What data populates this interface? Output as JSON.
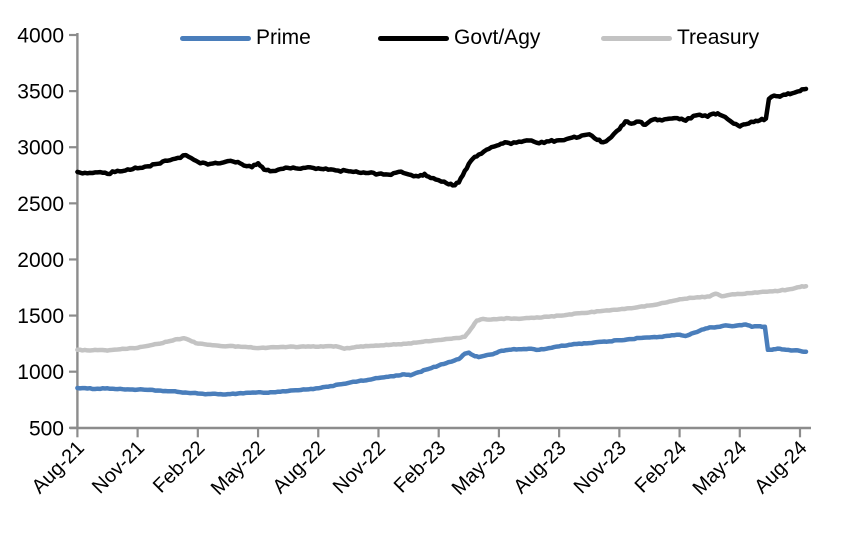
{
  "chart_data": {
    "type": "line",
    "title": "",
    "x_axis": {
      "tick_labels": [
        "Aug-21",
        "Nov-21",
        "Feb-22",
        "May-22",
        "Aug-22",
        "Nov-22",
        "Feb-23",
        "May-23",
        "Aug-23",
        "Nov-23",
        "Feb-24",
        "May-24",
        "Aug-24"
      ],
      "tick_positions_months": [
        0,
        3,
        6,
        9,
        12,
        15,
        18,
        21,
        24,
        27,
        30,
        33,
        36
      ],
      "data_range_months": [
        0,
        36.3
      ],
      "label_rotation_deg": -45
    },
    "y_axis": {
      "ticks": [
        500,
        1000,
        1500,
        2000,
        2500,
        3000,
        3500,
        4000
      ],
      "range": [
        500,
        4000
      ],
      "gridlines": false
    },
    "legend": {
      "position": "top",
      "entries": [
        {
          "label": "Prime",
          "color": "#4A7EBB"
        },
        {
          "label": "Govt/Agy",
          "color": "#000000"
        },
        {
          "label": "Treasury",
          "color": "#C3C3C3"
        }
      ]
    },
    "series": [
      {
        "name": "Prime",
        "color": "#4A7EBB",
        "stroke_width": 4.5,
        "roughness": 3.5,
        "points": [
          [
            0,
            855
          ],
          [
            0.5,
            850
          ],
          [
            1,
            848
          ],
          [
            1.5,
            852
          ],
          [
            2,
            845
          ],
          [
            2.5,
            842
          ],
          [
            3,
            840
          ],
          [
            3.5,
            838
          ],
          [
            4,
            832
          ],
          [
            4.5,
            826
          ],
          [
            5,
            820
          ],
          [
            5.5,
            812
          ],
          [
            6,
            806
          ],
          [
            6.5,
            801
          ],
          [
            7,
            799
          ],
          [
            7.5,
            800
          ],
          [
            8,
            806
          ],
          [
            8.5,
            812
          ],
          [
            9,
            816
          ],
          [
            9.5,
            812
          ],
          [
            10,
            822
          ],
          [
            10.5,
            828
          ],
          [
            11,
            835
          ],
          [
            11.5,
            842
          ],
          [
            12,
            852
          ],
          [
            12.5,
            866
          ],
          [
            13,
            886
          ],
          [
            13.5,
            900
          ],
          [
            14,
            915
          ],
          [
            14.5,
            928
          ],
          [
            15,
            944
          ],
          [
            15.5,
            955
          ],
          [
            16,
            966
          ],
          [
            16.3,
            976
          ],
          [
            16.6,
            968
          ],
          [
            17,
            995
          ],
          [
            17.5,
            1025
          ],
          [
            18,
            1055
          ],
          [
            18.5,
            1085
          ],
          [
            19,
            1112
          ],
          [
            19.3,
            1160
          ],
          [
            19.5,
            1170
          ],
          [
            19.8,
            1138
          ],
          [
            20,
            1130
          ],
          [
            20.4,
            1148
          ],
          [
            20.7,
            1155
          ],
          [
            21,
            1180
          ],
          [
            21.5,
            1195
          ],
          [
            22,
            1200
          ],
          [
            22.5,
            1205
          ],
          [
            23,
            1195
          ],
          [
            23.5,
            1210
          ],
          [
            24,
            1225
          ],
          [
            24.5,
            1240
          ],
          [
            25,
            1250
          ],
          [
            25.5,
            1255
          ],
          [
            26,
            1265
          ],
          [
            26.5,
            1270
          ],
          [
            27,
            1280
          ],
          [
            27.5,
            1290
          ],
          [
            28,
            1300
          ],
          [
            28.5,
            1305
          ],
          [
            29,
            1310
          ],
          [
            29.5,
            1320
          ],
          [
            30,
            1330
          ],
          [
            30.3,
            1318
          ],
          [
            30.6,
            1340
          ],
          [
            31,
            1365
          ],
          [
            31.3,
            1385
          ],
          [
            31.6,
            1395
          ],
          [
            32,
            1400
          ],
          [
            32.3,
            1412
          ],
          [
            32.6,
            1405
          ],
          [
            33,
            1415
          ],
          [
            33.3,
            1420
          ],
          [
            33.6,
            1400
          ],
          [
            34,
            1405
          ],
          [
            34.25,
            1400
          ],
          [
            34.4,
            1195
          ],
          [
            34.7,
            1200
          ],
          [
            35,
            1205
          ],
          [
            35.3,
            1196
          ],
          [
            35.7,
            1190
          ],
          [
            36,
            1185
          ],
          [
            36.3,
            1178
          ]
        ]
      },
      {
        "name": "Govt/Agy",
        "color": "#000000",
        "stroke_width": 4.5,
        "roughness": 9,
        "points": [
          [
            0,
            2780
          ],
          [
            0.5,
            2768
          ],
          [
            1,
            2776
          ],
          [
            1.5,
            2762
          ],
          [
            2,
            2790
          ],
          [
            2.5,
            2802
          ],
          [
            3,
            2812
          ],
          [
            3.5,
            2830
          ],
          [
            4,
            2852
          ],
          [
            4.5,
            2880
          ],
          [
            5,
            2905
          ],
          [
            5.4,
            2930
          ],
          [
            5.8,
            2888
          ],
          [
            6,
            2870
          ],
          [
            6.5,
            2846
          ],
          [
            7,
            2856
          ],
          [
            7.5,
            2876
          ],
          [
            8,
            2868
          ],
          [
            8.3,
            2836
          ],
          [
            8.7,
            2822
          ],
          [
            9,
            2858
          ],
          [
            9.3,
            2800
          ],
          [
            9.6,
            2786
          ],
          [
            10,
            2800
          ],
          [
            10.5,
            2816
          ],
          [
            11,
            2810
          ],
          [
            11.5,
            2822
          ],
          [
            12,
            2812
          ],
          [
            12.5,
            2800
          ],
          [
            13,
            2792
          ],
          [
            13.5,
            2786
          ],
          [
            14,
            2776
          ],
          [
            14.5,
            2770
          ],
          [
            15,
            2762
          ],
          [
            15.5,
            2756
          ],
          [
            16,
            2780
          ],
          [
            16.5,
            2758
          ],
          [
            17,
            2740
          ],
          [
            17.3,
            2762
          ],
          [
            17.6,
            2726
          ],
          [
            18,
            2706
          ],
          [
            18.4,
            2678
          ],
          [
            18.7,
            2660
          ],
          [
            19,
            2686
          ],
          [
            19.2,
            2750
          ],
          [
            19.5,
            2852
          ],
          [
            19.8,
            2915
          ],
          [
            20,
            2935
          ],
          [
            20.5,
            2985
          ],
          [
            21,
            3020
          ],
          [
            21.3,
            3045
          ],
          [
            21.6,
            3030
          ],
          [
            22,
            3050
          ],
          [
            22.5,
            3060
          ],
          [
            23,
            3035
          ],
          [
            23.5,
            3052
          ],
          [
            24,
            3062
          ],
          [
            24.5,
            3080
          ],
          [
            25,
            3090
          ],
          [
            25.5,
            3115
          ],
          [
            25.9,
            3065
          ],
          [
            26.2,
            3045
          ],
          [
            26.6,
            3090
          ],
          [
            27,
            3160
          ],
          [
            27.3,
            3230
          ],
          [
            27.6,
            3210
          ],
          [
            28,
            3228
          ],
          [
            28.3,
            3200
          ],
          [
            28.7,
            3248
          ],
          [
            29,
            3245
          ],
          [
            29.5,
            3255
          ],
          [
            30,
            3250
          ],
          [
            30.3,
            3236
          ],
          [
            30.7,
            3280
          ],
          [
            31,
            3290
          ],
          [
            31.4,
            3272
          ],
          [
            31.7,
            3300
          ],
          [
            32,
            3290
          ],
          [
            32.4,
            3250
          ],
          [
            32.7,
            3210
          ],
          [
            33,
            3185
          ],
          [
            33.3,
            3205
          ],
          [
            33.7,
            3225
          ],
          [
            34,
            3240
          ],
          [
            34.3,
            3255
          ],
          [
            34.45,
            3430
          ],
          [
            34.7,
            3460
          ],
          [
            35,
            3450
          ],
          [
            35.3,
            3468
          ],
          [
            35.6,
            3480
          ],
          [
            36,
            3500
          ],
          [
            36.3,
            3520
          ]
        ]
      },
      {
        "name": "Treasury",
        "color": "#C3C3C3",
        "stroke_width": 4.5,
        "roughness": 3.5,
        "points": [
          [
            0,
            1195
          ],
          [
            0.5,
            1190
          ],
          [
            1,
            1192
          ],
          [
            1.5,
            1188
          ],
          [
            2,
            1198
          ],
          [
            2.5,
            1205
          ],
          [
            3,
            1212
          ],
          [
            3.5,
            1230
          ],
          [
            4,
            1248
          ],
          [
            4.5,
            1268
          ],
          [
            5,
            1290
          ],
          [
            5.3,
            1298
          ],
          [
            5.7,
            1270
          ],
          [
            6,
            1250
          ],
          [
            6.5,
            1240
          ],
          [
            7,
            1232
          ],
          [
            7.5,
            1228
          ],
          [
            8,
            1225
          ],
          [
            8.5,
            1218
          ],
          [
            9,
            1210
          ],
          [
            9.5,
            1215
          ],
          [
            10,
            1218
          ],
          [
            10.5,
            1222
          ],
          [
            11,
            1220
          ],
          [
            11.5,
            1225
          ],
          [
            12,
            1222
          ],
          [
            12.5,
            1228
          ],
          [
            13,
            1222
          ],
          [
            13.3,
            1205
          ],
          [
            13.7,
            1215
          ],
          [
            14,
            1222
          ],
          [
            14.5,
            1228
          ],
          [
            15,
            1232
          ],
          [
            15.5,
            1238
          ],
          [
            16,
            1245
          ],
          [
            16.5,
            1252
          ],
          [
            17,
            1262
          ],
          [
            17.5,
            1272
          ],
          [
            18,
            1282
          ],
          [
            18.5,
            1292
          ],
          [
            19,
            1300
          ],
          [
            19.3,
            1312
          ],
          [
            19.6,
            1380
          ],
          [
            19.9,
            1455
          ],
          [
            20.2,
            1470
          ],
          [
            20.5,
            1464
          ],
          [
            21,
            1470
          ],
          [
            21.5,
            1476
          ],
          [
            22,
            1470
          ],
          [
            22.5,
            1478
          ],
          [
            23,
            1482
          ],
          [
            23.5,
            1490
          ],
          [
            24,
            1500
          ],
          [
            24.5,
            1510
          ],
          [
            25,
            1520
          ],
          [
            25.5,
            1528
          ],
          [
            26,
            1538
          ],
          [
            26.5,
            1545
          ],
          [
            27,
            1555
          ],
          [
            27.5,
            1565
          ],
          [
            28,
            1578
          ],
          [
            28.5,
            1590
          ],
          [
            29,
            1605
          ],
          [
            29.5,
            1625
          ],
          [
            30,
            1645
          ],
          [
            30.5,
            1658
          ],
          [
            31,
            1662
          ],
          [
            31.5,
            1670
          ],
          [
            31.8,
            1695
          ],
          [
            32.1,
            1672
          ],
          [
            32.5,
            1685
          ],
          [
            33,
            1692
          ],
          [
            33.5,
            1700
          ],
          [
            34,
            1708
          ],
          [
            34.5,
            1715
          ],
          [
            35,
            1722
          ],
          [
            35.5,
            1735
          ],
          [
            36,
            1755
          ],
          [
            36.3,
            1762
          ]
        ]
      }
    ]
  },
  "colors": {
    "axis": "#8C8C8C",
    "label_text": "#000000",
    "background": "#FFFFFF"
  }
}
